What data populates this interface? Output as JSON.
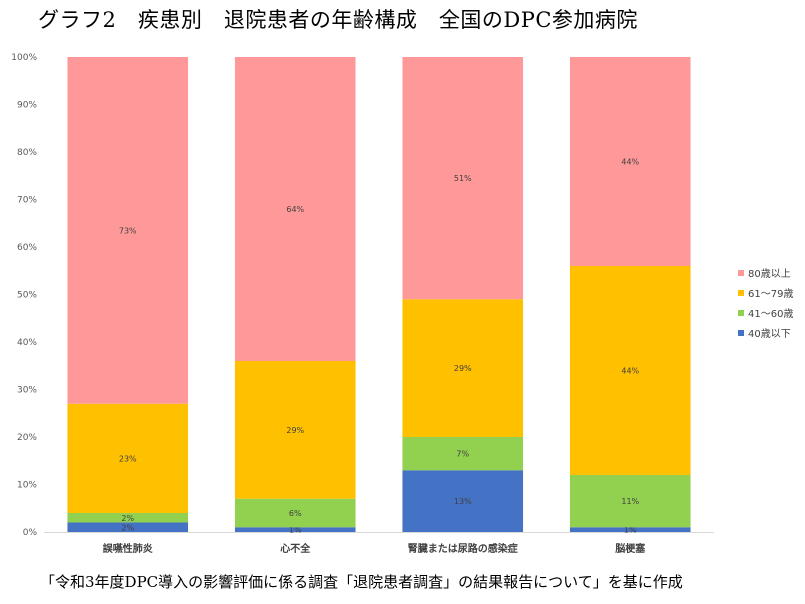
{
  "title": "グラフ2　疾患別　退院患者の年齢構成　全国のDPC参加病院",
  "footnote": "「令和3年度DPC導入の影響評価に係る調査「退院患者調査」の結果報告について」を基に作成",
  "chart_data": {
    "type": "bar",
    "stacked": true,
    "percent": true,
    "categories": [
      "誤嚥性肺炎",
      "心不全",
      "腎臓または尿路の感染症",
      "脳梗塞"
    ],
    "series": [
      {
        "name": "40歳以下",
        "color": "#4472C4",
        "values": [
          2,
          1,
          13,
          1
        ],
        "labels": [
          "2%",
          "1%",
          "13%",
          "1%"
        ]
      },
      {
        "name": "41～60歳",
        "color": "#92D050",
        "values": [
          2,
          6,
          7,
          11
        ],
        "labels": [
          "2%",
          "6%",
          "7%",
          "11%"
        ]
      },
      {
        "name": "61～79歳",
        "color": "#FFC000",
        "values": [
          23,
          29,
          29,
          44
        ],
        "labels": [
          "23%",
          "29%",
          "29%",
          "44%"
        ]
      },
      {
        "name": "80歳以上",
        "color": "#FF9999",
        "values": [
          73,
          64,
          51,
          44
        ],
        "labels": [
          "73%",
          "64%",
          "51%",
          "44%"
        ]
      }
    ],
    "legend_order": [
      "80歳以上",
      "61～79歳",
      "41～60歳",
      "40歳以下"
    ],
    "yticks": [
      "0%",
      "10%",
      "20%",
      "30%",
      "40%",
      "50%",
      "60%",
      "70%",
      "80%",
      "90%",
      "100%"
    ],
    "ylim": [
      0,
      100
    ],
    "legend_position": "right"
  }
}
